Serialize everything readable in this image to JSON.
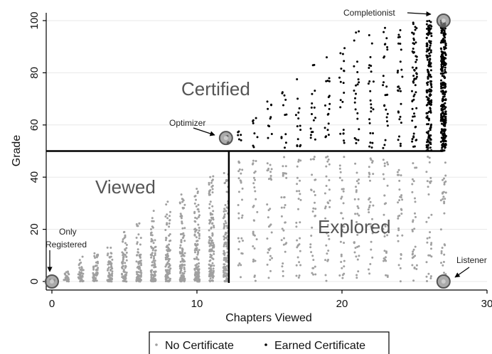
{
  "chart_data": {
    "type": "scatter",
    "xlabel": "Chapters Viewed",
    "ylabel": "Grade",
    "xlim": [
      0,
      30
    ],
    "ylim": [
      0,
      100
    ],
    "xticks": [
      "0",
      "10",
      "20",
      "30"
    ],
    "yticks": [
      "0",
      "20",
      "40",
      "60",
      "80",
      "100"
    ],
    "legend": {
      "placement": "bottom-center",
      "entries": [
        {
          "name": "No Certificate",
          "color": "#a0a0a0"
        },
        {
          "name": "Earned Certificate",
          "color": "#000000"
        }
      ]
    },
    "series": [
      {
        "name": "No Certificate",
        "color": "#a0a0a0",
        "description_points": [
          {
            "x": 0,
            "y": 0
          },
          {
            "x": 1,
            "y": 3
          },
          {
            "x": 1,
            "y": 5
          },
          {
            "x": 2,
            "y": 4
          },
          {
            "x": 2,
            "y": 7
          },
          {
            "x": 3,
            "y": 6
          },
          {
            "x": 3,
            "y": 10
          },
          {
            "x": 4,
            "y": 8
          },
          {
            "x": 4,
            "y": 13
          },
          {
            "x": 5,
            "y": 10
          },
          {
            "x": 5,
            "y": 16
          },
          {
            "x": 6,
            "y": 12
          },
          {
            "x": 6,
            "y": 22
          },
          {
            "x": 7,
            "y": 15
          },
          {
            "x": 7,
            "y": 25
          },
          {
            "x": 8,
            "y": 18
          },
          {
            "x": 8,
            "y": 30
          },
          {
            "x": 9,
            "y": 20
          },
          {
            "x": 9,
            "y": 28
          },
          {
            "x": 10,
            "y": 25
          },
          {
            "x": 10,
            "y": 32
          },
          {
            "x": 11,
            "y": 28
          },
          {
            "x": 11,
            "y": 38
          },
          {
            "x": 12,
            "y": 30
          },
          {
            "x": 12,
            "y": 45
          },
          {
            "x": 13,
            "y": 35
          },
          {
            "x": 13,
            "y": 48
          },
          {
            "x": 15,
            "y": 30
          },
          {
            "x": 16,
            "y": 40
          },
          {
            "x": 20,
            "y": 30
          },
          {
            "x": 25,
            "y": 20
          },
          {
            "x": 27,
            "y": 0
          }
        ]
      },
      {
        "name": "Earned Certificate",
        "color": "#000000",
        "description_points": [
          {
            "x": 12,
            "y": 55
          },
          {
            "x": 13,
            "y": 56
          },
          {
            "x": 14,
            "y": 57
          },
          {
            "x": 15,
            "y": 60
          },
          {
            "x": 16,
            "y": 62
          },
          {
            "x": 18,
            "y": 65
          },
          {
            "x": 20,
            "y": 70
          },
          {
            "x": 22,
            "y": 75
          },
          {
            "x": 23,
            "y": 95
          },
          {
            "x": 24,
            "y": 90
          },
          {
            "x": 25,
            "y": 88
          },
          {
            "x": 26,
            "y": 92
          },
          {
            "x": 27,
            "y": 100
          }
        ]
      }
    ],
    "thresholds": {
      "grade": 50,
      "chapters": 12.2
    },
    "regions": [
      "Certified",
      "Viewed",
      "Explored"
    ],
    "annotations": [
      {
        "text": "Completionist",
        "x": 27,
        "y": 100
      },
      {
        "text": "Optimizer",
        "x": 12,
        "y": 55
      },
      {
        "text": "Only Registered",
        "x": 0,
        "y": 0
      },
      {
        "text": "Listener",
        "x": 27,
        "y": 0
      }
    ]
  }
}
